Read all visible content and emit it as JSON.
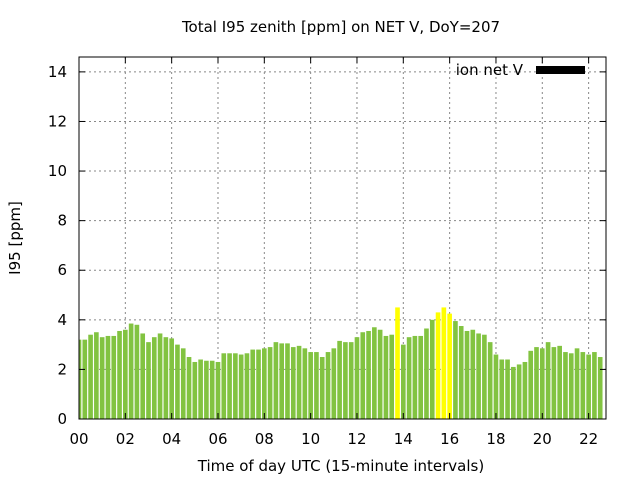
{
  "chart_data": {
    "type": "bar",
    "title": "Total I95 zenith [ppm] on NET V, DoY=207",
    "xlabel": "Time of day UTC (15-minute intervals)",
    "ylabel": "I95 [ppm]",
    "xlim": [
      0,
      22.75
    ],
    "ylim": [
      0,
      14.6
    ],
    "xticks": [
      "00",
      "02",
      "04",
      "06",
      "08",
      "10",
      "12",
      "14",
      "16",
      "18",
      "20",
      "22"
    ],
    "yticks": [
      "0",
      "2",
      "4",
      "6",
      "8",
      "10",
      "12",
      "14"
    ],
    "grid": true,
    "legend": {
      "label": "ion net V",
      "placement": "top-right",
      "color": "#000000"
    },
    "colors": {
      "normal": "#82c341",
      "highlight": "#ffff00",
      "axis": "#000000",
      "grid": "#888888"
    },
    "series": [
      {
        "name": "ion net V",
        "x_start_hours": 0,
        "interval_hours": 0.25,
        "values": [
          3.2,
          3.2,
          3.4,
          3.5,
          3.3,
          3.35,
          3.35,
          3.55,
          3.6,
          3.85,
          3.8,
          3.45,
          3.1,
          3.3,
          3.45,
          3.3,
          3.25,
          3.0,
          2.85,
          2.5,
          2.3,
          2.4,
          2.35,
          2.35,
          2.3,
          2.65,
          2.65,
          2.65,
          2.6,
          2.65,
          2.8,
          2.8,
          2.85,
          2.9,
          3.1,
          3.05,
          3.05,
          2.9,
          2.95,
          2.85,
          2.7,
          2.7,
          2.5,
          2.7,
          2.85,
          3.15,
          3.1,
          3.1,
          3.3,
          3.5,
          3.55,
          3.7,
          3.6,
          3.35,
          3.4,
          4.5,
          3.0,
          3.3,
          3.35,
          3.35,
          3.65,
          4.0,
          4.3,
          4.5,
          4.25,
          3.95,
          3.75,
          3.55,
          3.6,
          3.45,
          3.4,
          3.1,
          2.6,
          2.4,
          2.4,
          2.1,
          2.2,
          2.3,
          2.75,
          2.9,
          2.85,
          3.1,
          2.9,
          2.95,
          2.7,
          2.65,
          2.85,
          2.7,
          2.6,
          2.7,
          2.5
        ],
        "highlight_indices": [
          55,
          62,
          63,
          64
        ]
      }
    ]
  }
}
